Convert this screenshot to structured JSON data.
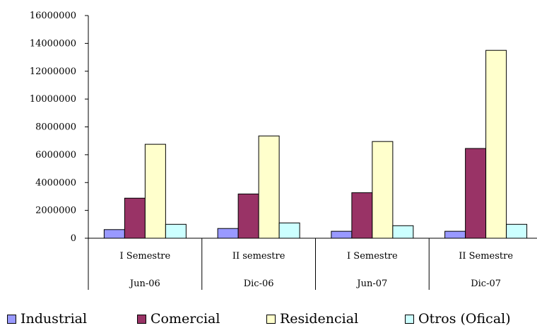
{
  "chart_data": {
    "type": "bar",
    "title": "",
    "xlabel": "",
    "ylabel": "",
    "ylim": [
      0,
      16000000
    ],
    "yticks": [
      0,
      2000000,
      4000000,
      6000000,
      8000000,
      10000000,
      12000000,
      14000000,
      16000000
    ],
    "ytick_labels": [
      "0",
      "2000000",
      "4000000",
      "6000000",
      "8000000",
      "10000000",
      "12000000",
      "14000000",
      "16000000"
    ],
    "grid": false,
    "legend_position": "bottom",
    "categories": [
      {
        "semester": "I Semestre",
        "date": "Jun-06"
      },
      {
        "semester": "II semestre",
        "date": "Dic-06"
      },
      {
        "semester": "I Semestre",
        "date": "Jun-07"
      },
      {
        "semester": "II Semestre",
        "date": "Dic-07"
      }
    ],
    "series": [
      {
        "name": "Industrial",
        "color": "#9999ff",
        "values": [
          620000,
          700000,
          500000,
          500000
        ]
      },
      {
        "name": "Comercial",
        "color": "#993366",
        "values": [
          2880000,
          3180000,
          3270000,
          6450000
        ]
      },
      {
        "name": "Residencial",
        "color": "#ffffcc",
        "values": [
          6750000,
          7350000,
          6950000,
          13500000
        ]
      },
      {
        "name": "Otros (Ofical)",
        "color": "#ccffff",
        "values": [
          1000000,
          1100000,
          900000,
          1000000
        ]
      }
    ]
  }
}
